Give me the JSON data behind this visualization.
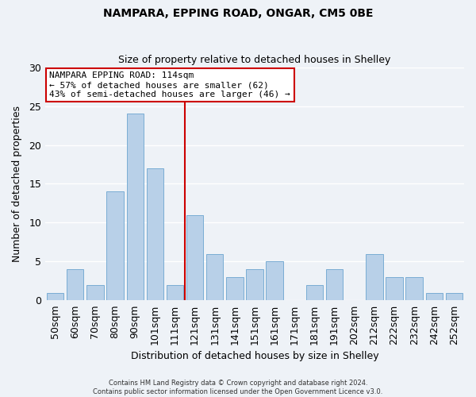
{
  "title": "NAMPARA, EPPING ROAD, ONGAR, CM5 0BE",
  "subtitle": "Size of property relative to detached houses in Shelley",
  "xlabel": "Distribution of detached houses by size in Shelley",
  "ylabel": "Number of detached properties",
  "bar_labels": [
    "50sqm",
    "60sqm",
    "70sqm",
    "80sqm",
    "90sqm",
    "101sqm",
    "111sqm",
    "121sqm",
    "131sqm",
    "141sqm",
    "151sqm",
    "161sqm",
    "171sqm",
    "181sqm",
    "191sqm",
    "202sqm",
    "212sqm",
    "222sqm",
    "232sqm",
    "242sqm",
    "252sqm"
  ],
  "bar_values": [
    1,
    4,
    2,
    14,
    24,
    17,
    2,
    11,
    6,
    3,
    4,
    5,
    0,
    2,
    4,
    0,
    6,
    3,
    3,
    1,
    1
  ],
  "bar_color": "#b8d0e8",
  "bar_edge_color": "#7aadd4",
  "reference_label": "NAMPARA EPPING ROAD: 114sqm",
  "annotation_line1": "← 57% of detached houses are smaller (62)",
  "annotation_line2": "43% of semi-detached houses are larger (46) →",
  "annotation_box_color": "#ffffff",
  "annotation_box_edge": "#cc0000",
  "vline_color": "#cc0000",
  "ylim": [
    0,
    30
  ],
  "yticks": [
    0,
    5,
    10,
    15,
    20,
    25,
    30
  ],
  "footer1": "Contains HM Land Registry data © Crown copyright and database right 2024.",
  "footer2": "Contains public sector information licensed under the Open Government Licence v3.0.",
  "bg_color": "#eef2f7",
  "grid_color": "#ffffff",
  "title_fontsize": 10,
  "subtitle_fontsize": 9
}
